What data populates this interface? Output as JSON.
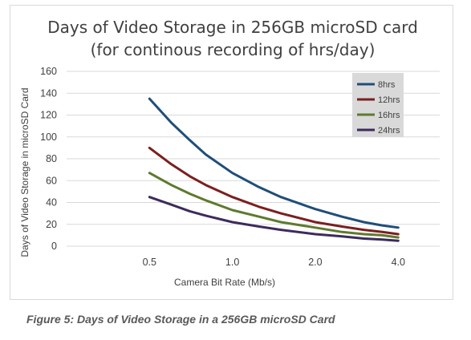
{
  "chart_data": {
    "type": "line",
    "title_lines": [
      "Days of Video Storage in 256GB microSD card",
      "(for continous recording of hrs/day)"
    ],
    "xlabel": "Camera Bit Rate (Mb/s)",
    "ylabel": "Days of Video Storage in microSD Card",
    "x_scale": "log2",
    "x_tick_labels": [
      "0.5",
      "1.0",
      "2.0",
      "4.0"
    ],
    "x_ticks": [
      0.5,
      1.0,
      2.0,
      4.0
    ],
    "xlim": [
      0.25,
      5.66
    ],
    "ylim": [
      0,
      160
    ],
    "y_ticks": [
      0,
      20,
      40,
      60,
      80,
      100,
      120,
      140,
      160
    ],
    "grid": "horizontal",
    "legend_position": "top-right",
    "x": [
      0.5,
      0.6,
      0.7,
      0.8,
      1.0,
      1.25,
      1.5,
      2.0,
      2.5,
      3.0,
      3.5,
      4.0
    ],
    "series": [
      {
        "name": "8hrs",
        "color": "#1f4e79",
        "values": [
          135,
          113,
          97,
          84,
          67,
          54,
          45,
          34,
          27,
          22,
          19,
          17
        ]
      },
      {
        "name": "12hrs",
        "color": "#7b1f1f",
        "values": [
          90,
          75,
          64,
          56,
          45,
          36,
          30,
          22,
          18,
          15,
          13,
          11
        ]
      },
      {
        "name": "16hrs",
        "color": "#5e7a2e",
        "values": [
          67,
          56,
          48,
          42,
          33,
          27,
          22,
          17,
          13,
          11,
          10,
          8
        ]
      },
      {
        "name": "24hrs",
        "color": "#3d2b5c",
        "values": [
          45,
          38,
          32,
          28,
          22,
          18,
          15,
          11,
          9,
          7,
          6,
          5
        ]
      }
    ]
  },
  "caption": "Figure 5: Days of Video Storage in a 256GB microSD Card"
}
